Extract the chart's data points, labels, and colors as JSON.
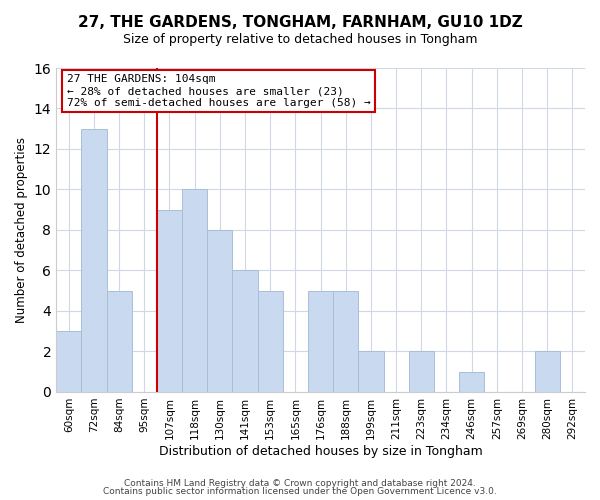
{
  "title": "27, THE GARDENS, TONGHAM, FARNHAM, GU10 1DZ",
  "subtitle": "Size of property relative to detached houses in Tongham",
  "xlabel": "Distribution of detached houses by size in Tongham",
  "ylabel": "Number of detached properties",
  "bar_labels": [
    "60sqm",
    "72sqm",
    "84sqm",
    "95sqm",
    "107sqm",
    "118sqm",
    "130sqm",
    "141sqm",
    "153sqm",
    "165sqm",
    "176sqm",
    "188sqm",
    "199sqm",
    "211sqm",
    "223sqm",
    "234sqm",
    "246sqm",
    "257sqm",
    "269sqm",
    "280sqm",
    "292sqm"
  ],
  "bar_heights": [
    3,
    13,
    5,
    0,
    9,
    10,
    8,
    6,
    5,
    0,
    5,
    5,
    2,
    0,
    2,
    0,
    1,
    0,
    0,
    2,
    0
  ],
  "bar_color": "#c9d9f0",
  "bar_edge_color": "#a8bfd8",
  "vline_x_index": 4,
  "vline_color": "#cc0000",
  "ylim": [
    0,
    16
  ],
  "yticks": [
    0,
    2,
    4,
    6,
    8,
    10,
    12,
    14,
    16
  ],
  "annotation_title": "27 THE GARDENS: 104sqm",
  "annotation_line1": "← 28% of detached houses are smaller (23)",
  "annotation_line2": "72% of semi-detached houses are larger (58) →",
  "annotation_box_color": "#ffffff",
  "annotation_box_edge_color": "#cc0000",
  "footer1": "Contains HM Land Registry data © Crown copyright and database right 2024.",
  "footer2": "Contains public sector information licensed under the Open Government Licence v3.0.",
  "background_color": "#ffffff",
  "grid_color": "#d0d8e8"
}
